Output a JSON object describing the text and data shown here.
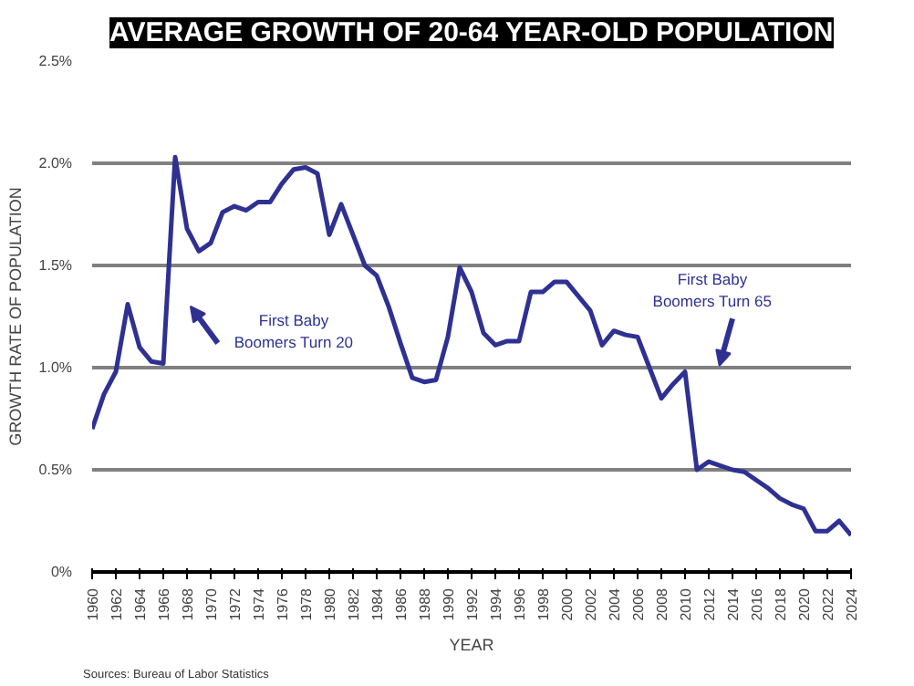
{
  "chart_data": {
    "type": "line",
    "title": "AVERAGE GROWTH OF 20-64 YEAR-OLD POPULATION",
    "xlabel": "YEAR",
    "ylabel": "GROWTH RATE OF POPULATION",
    "x": [
      1960,
      1961,
      1962,
      1963,
      1964,
      1965,
      1966,
      1967,
      1968,
      1969,
      1970,
      1971,
      1972,
      1973,
      1974,
      1975,
      1976,
      1977,
      1978,
      1979,
      1980,
      1981,
      1982,
      1983,
      1984,
      1985,
      1986,
      1987,
      1988,
      1989,
      1990,
      1991,
      1992,
      1993,
      1994,
      1995,
      1996,
      1997,
      1998,
      1999,
      2000,
      2001,
      2002,
      2003,
      2004,
      2005,
      2006,
      2007,
      2008,
      2009,
      2010,
      2011,
      2012,
      2013,
      2014,
      2015,
      2016,
      2017,
      2018,
      2019,
      2020,
      2021,
      2022,
      2023,
      2024
    ],
    "series": [
      {
        "color": "#2e3192",
        "values": [
          0.7,
          0.87,
          0.98,
          1.31,
          1.1,
          1.03,
          1.02,
          2.03,
          1.68,
          1.57,
          1.61,
          1.76,
          1.79,
          1.77,
          1.81,
          1.81,
          1.9,
          1.97,
          1.98,
          1.95,
          1.65,
          1.8,
          1.65,
          1.5,
          1.45,
          1.3,
          1.12,
          0.95,
          0.93,
          0.94,
          1.15,
          1.49,
          1.37,
          1.17,
          1.11,
          1.13,
          1.13,
          1.37,
          1.37,
          1.42,
          1.42,
          1.35,
          1.28,
          1.11,
          1.18,
          1.16,
          1.15,
          1.0,
          0.85,
          0.92,
          0.98,
          0.5,
          0.54,
          0.52,
          0.5,
          0.49,
          0.45,
          0.41,
          0.36,
          0.33,
          0.31,
          0.2,
          0.2,
          0.25,
          0.18
        ]
      }
    ],
    "xlim": [
      1960,
      2024
    ],
    "xticks": [
      1960,
      1962,
      1964,
      1966,
      1968,
      1970,
      1972,
      1974,
      1976,
      1978,
      1980,
      1982,
      1984,
      1986,
      1988,
      1990,
      1992,
      1994,
      1996,
      1998,
      2000,
      2002,
      2004,
      2006,
      2008,
      2010,
      2012,
      2014,
      2016,
      2018,
      2020,
      2022,
      2024
    ],
    "ylim": [
      0,
      2.5
    ],
    "yticks": [
      {
        "value": 0,
        "label": "0%"
      },
      {
        "value": 0.5,
        "label": "0.5%"
      },
      {
        "value": 1.0,
        "label": "1.0%"
      },
      {
        "value": 1.5,
        "label": "1.5%"
      },
      {
        "value": 2.0,
        "label": "2.0%"
      },
      {
        "value": 2.5,
        "label": "2.5%"
      }
    ],
    "grid": "y",
    "marker": "none",
    "line_style": "solid",
    "annotations": [
      "First Baby\nBoomers Turn 20",
      "First Baby\nBoomers Turn 65",
      "Sources: Bureau of Labor Statistics"
    ]
  }
}
